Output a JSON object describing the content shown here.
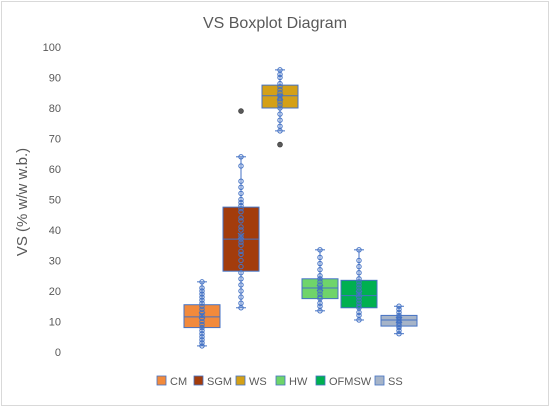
{
  "chart_data": {
    "type": "boxplot",
    "title": "VS Boxplot Diagram",
    "ylabel": "VS (% w/w w.b.)",
    "xlabel": "",
    "ylim": [
      0,
      100
    ],
    "yticks": [
      0,
      10,
      20,
      30,
      40,
      50,
      60,
      70,
      80,
      90,
      100
    ],
    "grid": false,
    "legend_position": "bottom",
    "series": [
      {
        "name": "CM",
        "color": "#f28a3c",
        "edge": "#c55a11",
        "min": 2,
        "q1": 8,
        "median": 11.5,
        "q3": 15.5,
        "max": 23,
        "mean": 12,
        "outliers": [],
        "points": [
          2,
          3,
          4,
          5,
          6,
          7,
          8,
          9,
          10,
          11,
          12,
          13,
          14,
          15,
          16,
          17,
          18,
          19,
          20,
          21,
          23
        ]
      },
      {
        "name": "SGM",
        "color": "#a33c0c",
        "edge": "#843c0c",
        "min": 14.5,
        "q1": 26.5,
        "median": 37,
        "q3": 47.5,
        "max": 64,
        "mean": 38,
        "outliers": [
          79
        ],
        "points": [
          14.5,
          16,
          18,
          20,
          22,
          24,
          26,
          28,
          30,
          32,
          33,
          35,
          36,
          37,
          38,
          40,
          41,
          43,
          44,
          46,
          47,
          48,
          49,
          50,
          52,
          54,
          56,
          61,
          64
        ]
      },
      {
        "name": "WS",
        "color": "#d4a017",
        "edge": "#a57c00",
        "min": 72.5,
        "q1": 80,
        "median": 84,
        "q3": 87.5,
        "max": 92.5,
        "mean": 83.5,
        "outliers": [
          68
        ],
        "points": [
          72.5,
          74,
          76,
          78,
          80,
          81,
          82,
          83,
          84,
          85,
          86,
          87,
          88,
          90,
          91,
          92.5
        ]
      },
      {
        "name": "HW",
        "color": "#6fd46a",
        "edge": "#4ea72e",
        "min": 13.5,
        "q1": 17.5,
        "median": 21,
        "q3": 24,
        "max": 33.5,
        "mean": 21,
        "outliers": [],
        "points": [
          13.5,
          15,
          16,
          17.5,
          18,
          19,
          20,
          21,
          22,
          23,
          24,
          25,
          27,
          29,
          31,
          33.5
        ]
      },
      {
        "name": "OFMSW",
        "color": "#00b050",
        "edge": "#00803a",
        "min": 10.5,
        "q1": 14.5,
        "median": 18.5,
        "q3": 23.5,
        "max": 33.5,
        "mean": 19,
        "outliers": [],
        "points": [
          10.5,
          12,
          13,
          14.5,
          15,
          16,
          17,
          18,
          19,
          20,
          21,
          22,
          23,
          24,
          26,
          28,
          30,
          33.5
        ]
      },
      {
        "name": "SS",
        "color": "#a6b4c8",
        "edge": "#7f8fa6",
        "min": 6,
        "q1": 8.5,
        "median": 10.5,
        "q3": 12,
        "max": 15,
        "mean": 10.5,
        "outliers": [],
        "points": [
          6,
          7,
          8,
          8.5,
          9,
          10,
          10.5,
          11,
          12,
          13,
          14,
          15
        ]
      }
    ]
  }
}
